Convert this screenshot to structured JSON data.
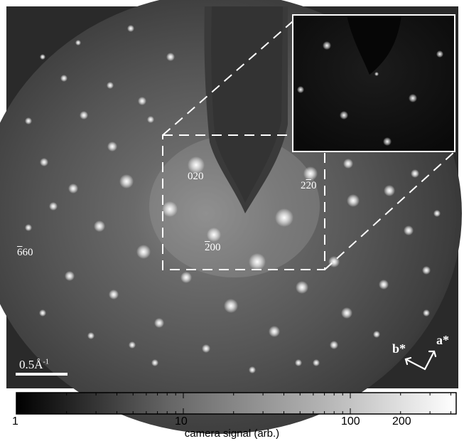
{
  "image": {
    "description_free_labels": true
  },
  "reflections": {
    "r020": "020",
    "r220_a": "2",
    "r220_b": "2",
    "r220_c": "0",
    "r200_a": "2",
    "r200_b": "00",
    "r660_a": "6",
    "r660_b": "60"
  },
  "scale_bar": {
    "label": "0.5Å",
    "exponent": "-1"
  },
  "axes": {
    "a_label": "a*",
    "b_label": "b*"
  },
  "colorbar": {
    "tick_1": "1",
    "tick_10": "10",
    "tick_100": "100",
    "tick_200": "200",
    "label": "camera signal (arb.)"
  },
  "colors": {
    "foreground": "#ffffff",
    "background": "#000000"
  }
}
